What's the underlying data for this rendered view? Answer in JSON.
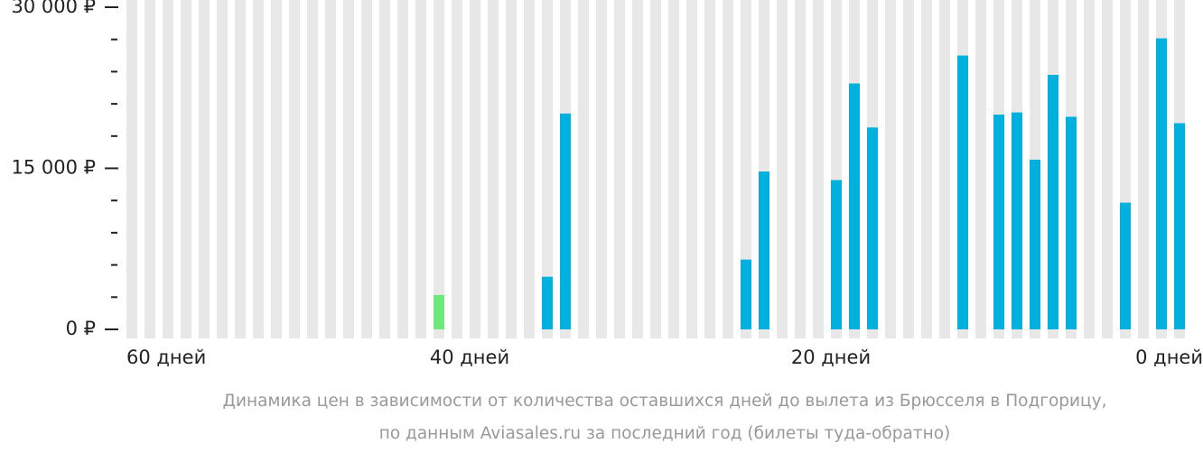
{
  "chart_data": {
    "type": "bar",
    "values": [
      null,
      null,
      null,
      null,
      null,
      null,
      null,
      null,
      null,
      null,
      null,
      null,
      null,
      null,
      null,
      null,
      null,
      3200,
      null,
      null,
      null,
      null,
      null,
      4900,
      20100,
      null,
      null,
      null,
      null,
      null,
      null,
      null,
      null,
      null,
      6500,
      14700,
      null,
      null,
      null,
      13900,
      22900,
      18800,
      null,
      null,
      null,
      null,
      25500,
      null,
      20000,
      20200,
      15800,
      23700,
      19800,
      null,
      null,
      11800,
      null,
      27100,
      19200
    ],
    "color": "#00b0dd",
    "highlight": {
      "index": 17,
      "color": "#6ee87a"
    },
    "ylim": [
      0,
      30000
    ],
    "yticks": [
      {
        "value": 0,
        "label": "0 ₽"
      },
      {
        "value": 15000,
        "label": "15 000 ₽"
      },
      {
        "value": 30000,
        "label": "30 000 ₽"
      }
    ],
    "yminorticks": [
      3000,
      6000,
      9000,
      12000,
      18000,
      21000,
      24000,
      27000
    ],
    "x_axis_labels": [
      "60 дней",
      "40 дней",
      "20 дней",
      "0 дней"
    ],
    "caption": [
      "Динамика цен в зависимости от количества оставшихся дней до вылета из Брюсселя в Подгорицу,",
      "по данным Aviasales.ru за последний год (билеты туда-обратно)"
    ]
  }
}
